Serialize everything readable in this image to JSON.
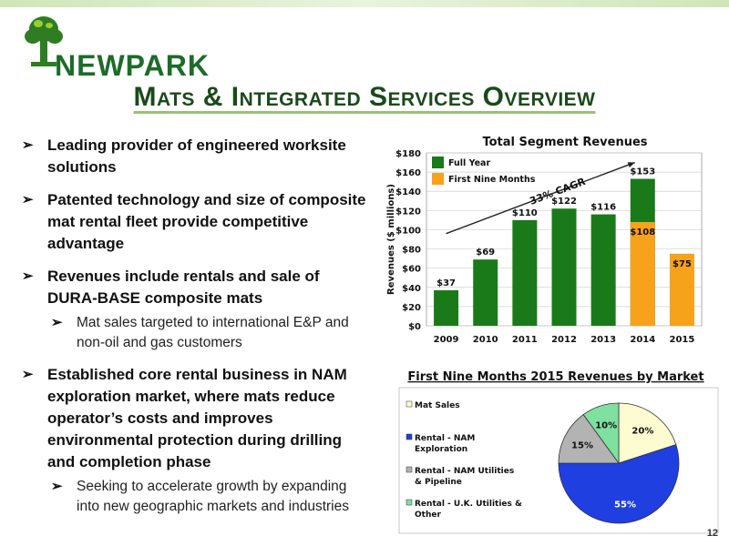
{
  "header": {
    "logo_text": "NEWPARK",
    "title": "Mats & Integrated Services Overview"
  },
  "bullets": [
    {
      "text": "Leading provider of engineered worksite solutions",
      "subs": []
    },
    {
      "text": "Patented technology and size of composite mat rental fleet provide competitive advantage",
      "subs": []
    },
    {
      "text": "Revenues include rentals and sale of DURA-BASE composite mats",
      "subs": [
        "Mat sales targeted to international E&P and non-oil and gas customers"
      ]
    },
    {
      "text": "Established core rental business in NAM exploration market, where mats reduce operator’s costs and improves environmental protection during drilling and completion phase",
      "subs": [
        "Seeking to accelerate growth by expanding into new geographic markets and industries"
      ]
    }
  ],
  "page_number": "12",
  "chart_data": [
    {
      "type": "bar",
      "title": "Total Segment Revenues",
      "ylabel": "Revenues ($ millions)",
      "categories": [
        "2009",
        "2010",
        "2011",
        "2012",
        "2013",
        "2014",
        "2015"
      ],
      "series": [
        {
          "name": "Full Year",
          "color": "#1a7a1a",
          "values": [
            37,
            69,
            110,
            122,
            116,
            153,
            null
          ]
        },
        {
          "name": "First Nine Months",
          "color": "#f7a21b",
          "values": [
            null,
            null,
            null,
            null,
            null,
            108,
            75
          ]
        }
      ],
      "data_labels": [
        "$37",
        "$69",
        "$110",
        "$122",
        "$116",
        "$153",
        "$108",
        "$75"
      ],
      "yticks": [
        "$0",
        "$20",
        "$40",
        "$60",
        "$80",
        "$100",
        "$120",
        "$140",
        "$160",
        "$180"
      ],
      "ylim": [
        0,
        180
      ],
      "annotation": "33% CAGR",
      "legend_position": "top-left",
      "grid": true
    },
    {
      "type": "pie",
      "title": "First Nine Months 2015 Revenues by Market",
      "slices": [
        {
          "label": "Mat Sales",
          "value": 20,
          "pct_label": "20%",
          "color": "#fdfbd0"
        },
        {
          "label": "Rental - NAM Exploration",
          "value": 55,
          "pct_label": "55%",
          "color": "#1f3fe0"
        },
        {
          "label": "Rental - NAM Utilities & Pipeline",
          "value": 15,
          "pct_label": "15%",
          "color": "#b3b3b3"
        },
        {
          "label": "Rental - U.K. Utilities & Other",
          "value": 10,
          "pct_label": "10%",
          "color": "#7fe0a0"
        }
      ],
      "legend_position": "left"
    }
  ]
}
